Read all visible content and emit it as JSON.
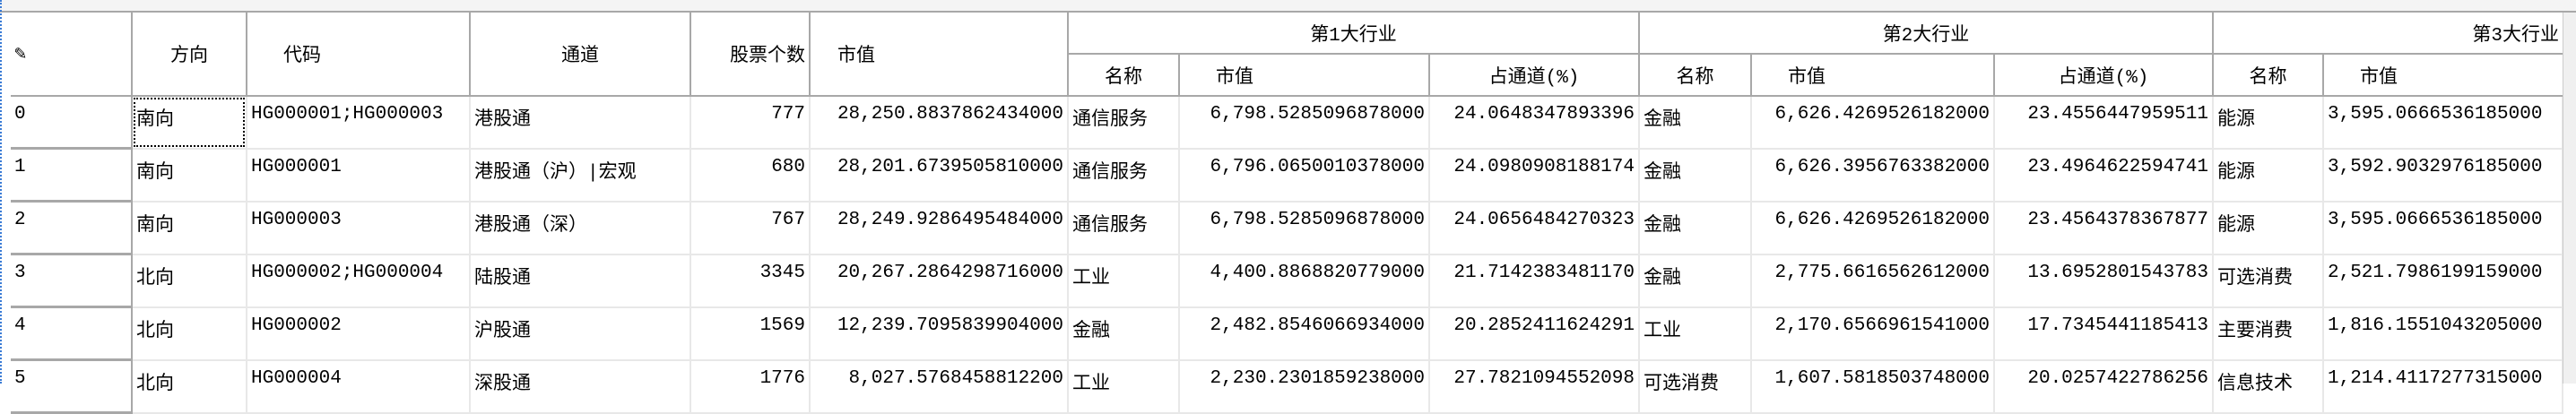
{
  "header": {
    "corner_icon": "pencil-icon",
    "columns_top": [
      "方向",
      "代码",
      "通道",
      "股票个数",
      "市值"
    ],
    "groups": [
      "第1大行业",
      "第2大行业",
      "第3大行业"
    ],
    "group_sub": [
      "名称",
      "市值",
      "占通道(%)"
    ],
    "group3_sub": [
      "名称",
      "市值"
    ]
  },
  "rows": [
    {
      "idx": "0",
      "dir": "南向",
      "code": "HG000001;HG000003",
      "channel": "港股通",
      "count": "777",
      "mv": "28,250.8837862434000",
      "i1": [
        "通信服务",
        "6,798.5285096878000",
        "24.0648347893396"
      ],
      "i2": [
        "金融",
        "6,626.4269526182000",
        "23.4556447959511"
      ],
      "i3": [
        "能源",
        "3,595.0666536185000"
      ]
    },
    {
      "idx": "1",
      "dir": "南向",
      "code": "HG000001",
      "channel": "港股通（沪）|宏观",
      "count": "680",
      "mv": "28,201.6739505810000",
      "i1": [
        "通信服务",
        "6,796.0650010378000",
        "24.0980908188174"
      ],
      "i2": [
        "金融",
        "6,626.3956763382000",
        "23.4964622594741"
      ],
      "i3": [
        "能源",
        "3,592.9032976185000"
      ]
    },
    {
      "idx": "2",
      "dir": "南向",
      "code": "HG000003",
      "channel": "港股通（深）",
      "count": "767",
      "mv": "28,249.9286495484000",
      "i1": [
        "通信服务",
        "6,798.5285096878000",
        "24.0656484270323"
      ],
      "i2": [
        "金融",
        "6,626.4269526182000",
        "23.4564378367877"
      ],
      "i3": [
        "能源",
        "3,595.0666536185000"
      ]
    },
    {
      "idx": "3",
      "dir": "北向",
      "code": "HG000002;HG000004",
      "channel": "陆股通",
      "count": "3345",
      "mv": "20,267.2864298716000",
      "i1": [
        "工业",
        "4,400.8868820779000",
        "21.7142383481170"
      ],
      "i2": [
        "金融",
        "2,775.6616562612000",
        "13.6952801543783"
      ],
      "i3": [
        "可选消费",
        "2,521.7986199159000"
      ]
    },
    {
      "idx": "4",
      "dir": "北向",
      "code": "HG000002",
      "channel": "沪股通",
      "count": "1569",
      "mv": "12,239.7095839904000",
      "i1": [
        "金融",
        "2,482.8546066934000",
        "20.2852411624291"
      ],
      "i2": [
        "工业",
        "2,170.6566961541000",
        "17.7345441185413"
      ],
      "i3": [
        "主要消费",
        "1,816.1551043205000"
      ]
    },
    {
      "idx": "5",
      "dir": "北向",
      "code": "HG000004",
      "channel": "深股通",
      "count": "1776",
      "mv": "8,027.5768458812200",
      "i1": [
        "工业",
        "2,230.2301859238000",
        "27.7821094552098"
      ],
      "i2": [
        "可选消费",
        "1,607.5818503748000",
        "20.0257422786256"
      ],
      "i3": [
        "信息技术",
        "1,214.4117277315000"
      ]
    }
  ]
}
